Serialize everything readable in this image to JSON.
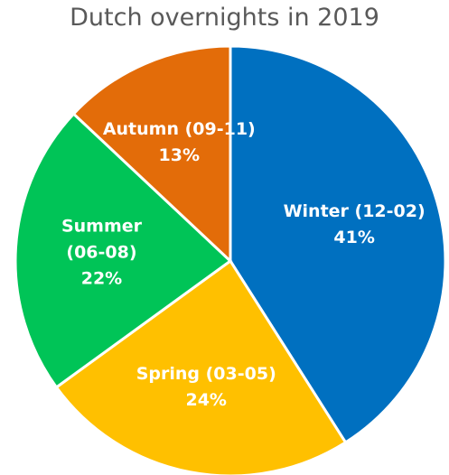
{
  "chart_data": {
    "type": "pie",
    "title": "Dutch overnights in 2019",
    "categories": [
      "Winter (12-02)",
      "Spring (03-05)",
      "Summer (06-08)",
      "Autumn (09-11)"
    ],
    "values": [
      41,
      24,
      22,
      13
    ],
    "value_labels": [
      "41%",
      "24%",
      "22%",
      "13%"
    ],
    "colors": [
      "#0070c0",
      "#ffc000",
      "#00c457",
      "#e36c09"
    ]
  }
}
